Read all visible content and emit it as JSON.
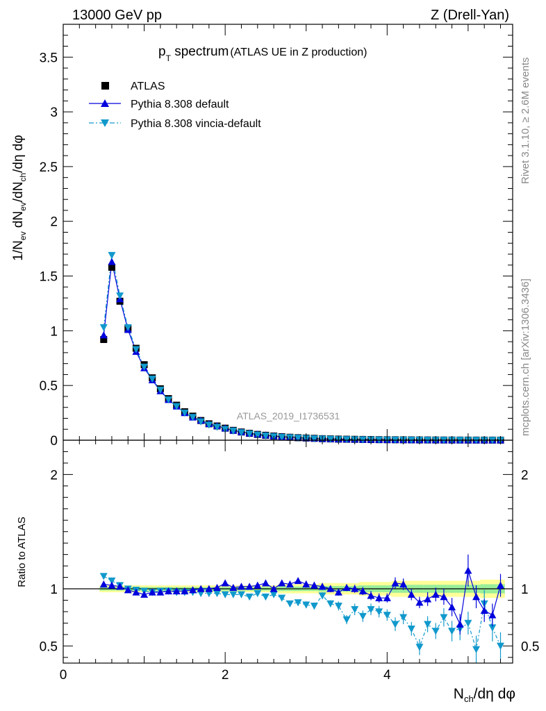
{
  "header": {
    "left": "13000 GeV pp",
    "right": "Z (Drell-Yan)"
  },
  "side_labels": {
    "rivet": "Rivet 3.1.10, ≥ 2.6M events",
    "mcplots": "mcplots.cern.ch [arXiv:1306.3436]"
  },
  "analysis_id": "ATLAS_2019_I1736531",
  "colors": {
    "data": "#000000",
    "pythia_default": "#0000dd",
    "pythia_vincia": "#1199cc",
    "band_outer": "#ffff99",
    "band_inner": "#99ee99"
  },
  "chart_data": [
    {
      "type": "scatter",
      "title": "p_T spectrum (ATLAS UE in Z production)",
      "xlabel": "N_ch/dη dφ",
      "ylabel": "1/N_ev dN_ev/dN_ch/dη dφ",
      "xlim": [
        0,
        5.55
      ],
      "ylim": [
        0,
        3.8
      ],
      "yticks": [
        0,
        0.5,
        1,
        1.5,
        2,
        2.5,
        3,
        3.5
      ],
      "legend": [
        "ATLAS",
        "Pythia 8.308 default",
        "Pythia 8.308 vincia-default"
      ],
      "legend_position": "top-left",
      "x": [
        0.5,
        0.6,
        0.7,
        0.8,
        0.9,
        1.0,
        1.1,
        1.2,
        1.3,
        1.4,
        1.5,
        1.6,
        1.7,
        1.8,
        1.9,
        2.0,
        2.1,
        2.2,
        2.3,
        2.4,
        2.5,
        2.6,
        2.7,
        2.8,
        2.9,
        3.0,
        3.1,
        3.2,
        3.3,
        3.4,
        3.5,
        3.6,
        3.7,
        3.8,
        3.9,
        4.0,
        4.1,
        4.2,
        4.3,
        4.4,
        4.5,
        4.6,
        4.7,
        4.8,
        4.9,
        5.0,
        5.1,
        5.2,
        5.3,
        5.4
      ],
      "series": [
        {
          "name": "ATLAS",
          "values": [
            0.92,
            1.58,
            1.27,
            1.02,
            0.84,
            0.69,
            0.57,
            0.47,
            0.38,
            0.32,
            0.26,
            0.22,
            0.18,
            0.15,
            0.13,
            0.11,
            0.09,
            0.075,
            0.063,
            0.053,
            0.045,
            0.038,
            0.032,
            0.027,
            0.023,
            0.02,
            0.017,
            0.014,
            0.012,
            0.01,
            0.009,
            0.008,
            0.007,
            0.006,
            0.005,
            0.0045,
            0.004,
            0.0035,
            0.003,
            0.0026,
            0.0023,
            0.002,
            0.0018,
            0.0016,
            0.0014,
            0.0012,
            0.0011,
            0.001,
            0.0009,
            0.0008
          ]
        },
        {
          "name": "Pythia 8.308 default",
          "values": [
            0.96,
            1.63,
            1.29,
            1.01,
            0.81,
            0.66,
            0.55,
            0.45,
            0.37,
            0.31,
            0.25,
            0.21,
            0.18,
            0.15,
            0.13,
            0.11,
            0.09,
            0.076,
            0.064,
            0.054,
            0.046,
            0.038,
            0.033,
            0.028,
            0.024,
            0.02,
            0.017,
            0.014,
            0.012,
            0.01,
            0.009,
            0.008,
            0.007,
            0.006,
            0.005,
            0.0045,
            0.004,
            0.0035,
            0.003,
            0.0026,
            0.0023,
            0.002,
            0.0018,
            0.0016,
            0.0014,
            0.0012,
            0.0011,
            0.001,
            0.0009,
            0.0008
          ]
        },
        {
          "name": "Pythia 8.308 vincia-default",
          "values": [
            1.03,
            1.69,
            1.32,
            1.03,
            0.83,
            0.67,
            0.56,
            0.46,
            0.37,
            0.31,
            0.25,
            0.21,
            0.17,
            0.14,
            0.12,
            0.1,
            0.085,
            0.07,
            0.058,
            0.048,
            0.04,
            0.034,
            0.028,
            0.024,
            0.02,
            0.017,
            0.014,
            0.012,
            0.01,
            0.008,
            0.007,
            0.006,
            0.005,
            0.0045,
            0.004,
            0.0035,
            0.003,
            0.0025,
            0.0022,
            0.0018,
            0.0016,
            0.0014,
            0.0012,
            0.001,
            0.0009,
            0.0008,
            0.0007,
            0.0006,
            0.0005,
            0.0004
          ]
        }
      ]
    },
    {
      "type": "scatter",
      "xlabel": "N_ch/dη dφ",
      "ylabel": "Ratio to ATLAS",
      "xlim": [
        0,
        5.55
      ],
      "ylim": [
        0.35,
        2.3
      ],
      "yticks": [
        0.5,
        1,
        2
      ],
      "xticks": [
        0,
        2,
        4
      ],
      "x": [
        0.5,
        0.6,
        0.7,
        0.8,
        0.9,
        1.0,
        1.1,
        1.2,
        1.3,
        1.4,
        1.5,
        1.6,
        1.7,
        1.8,
        1.9,
        2.0,
        2.1,
        2.2,
        2.3,
        2.4,
        2.5,
        2.6,
        2.7,
        2.8,
        2.9,
        3.0,
        3.1,
        3.2,
        3.3,
        3.4,
        3.5,
        3.6,
        3.7,
        3.8,
        3.9,
        4.0,
        4.1,
        4.2,
        4.3,
        4.4,
        4.5,
        4.6,
        4.7,
        4.8,
        4.9,
        5.0,
        5.1,
        5.2,
        5.3,
        5.4
      ],
      "band_outer": [
        0.03,
        0.03,
        0.03,
        0.03,
        0.03,
        0.03,
        0.03,
        0.03,
        0.03,
        0.03,
        0.03,
        0.03,
        0.03,
        0.03,
        0.03,
        0.03,
        0.03,
        0.03,
        0.03,
        0.03,
        0.03,
        0.03,
        0.04,
        0.04,
        0.04,
        0.04,
        0.04,
        0.05,
        0.05,
        0.05,
        0.05,
        0.05,
        0.06,
        0.06,
        0.06,
        0.06,
        0.07,
        0.07,
        0.07,
        0.07,
        0.07,
        0.07,
        0.07,
        0.07,
        0.07,
        0.07,
        0.07,
        0.08,
        0.08,
        0.08
      ],
      "band_inner": [
        0.015,
        0.015,
        0.015,
        0.015,
        0.015,
        0.015,
        0.015,
        0.015,
        0.015,
        0.015,
        0.015,
        0.015,
        0.015,
        0.015,
        0.015,
        0.015,
        0.015,
        0.015,
        0.015,
        0.015,
        0.015,
        0.015,
        0.02,
        0.02,
        0.02,
        0.02,
        0.02,
        0.025,
        0.025,
        0.025,
        0.025,
        0.025,
        0.03,
        0.03,
        0.03,
        0.03,
        0.035,
        0.035,
        0.035,
        0.035,
        0.035,
        0.035,
        0.035,
        0.035,
        0.035,
        0.035,
        0.035,
        0.04,
        0.04,
        0.04
      ],
      "series": [
        {
          "name": "Pythia 8.308 default",
          "values": [
            1.04,
            1.03,
            1.02,
            0.99,
            0.97,
            0.95,
            0.97,
            0.97,
            0.98,
            0.98,
            0.98,
            0.99,
            1.0,
            1.0,
            1.01,
            1.05,
            1.01,
            1.02,
            1.02,
            1.03,
            1.05,
            1.0,
            1.05,
            1.04,
            1.07,
            1.04,
            1.03,
            1.02,
            1.0,
            0.97,
            1.01,
            1.0,
            0.98,
            0.94,
            0.92,
            0.92,
            1.05,
            1.04,
            0.95,
            0.88,
            0.91,
            0.95,
            0.93,
            0.84,
            0.69,
            1.16,
            0.93,
            0.81,
            0.77,
            1.03
          ],
          "errors": [
            0.02,
            0.02,
            0.02,
            0.02,
            0.02,
            0.02,
            0.02,
            0.02,
            0.02,
            0.02,
            0.02,
            0.02,
            0.02,
            0.02,
            0.02,
            0.02,
            0.02,
            0.02,
            0.02,
            0.02,
            0.02,
            0.02,
            0.025,
            0.025,
            0.025,
            0.03,
            0.03,
            0.03,
            0.03,
            0.03,
            0.03,
            0.035,
            0.035,
            0.04,
            0.04,
            0.04,
            0.05,
            0.05,
            0.05,
            0.05,
            0.06,
            0.06,
            0.07,
            0.08,
            0.09,
            0.14,
            0.1,
            0.1,
            0.1,
            0.1
          ]
        },
        {
          "name": "Pythia 8.308 vincia-default",
          "values": [
            1.11,
            1.07,
            1.03,
            1.0,
            0.99,
            0.98,
            0.97,
            0.98,
            0.98,
            0.97,
            0.97,
            0.97,
            0.96,
            0.96,
            0.96,
            0.95,
            0.95,
            0.95,
            0.93,
            0.96,
            0.93,
            0.95,
            0.92,
            0.87,
            0.88,
            0.86,
            0.85,
            0.94,
            0.87,
            0.85,
            0.73,
            0.82,
            0.76,
            0.82,
            0.8,
            0.77,
            0.69,
            0.75,
            0.65,
            0.49,
            0.69,
            0.63,
            0.75,
            0.63,
            0.65,
            0.7,
            0.47,
            0.87,
            0.66,
            0.5
          ],
          "errors": [
            0.02,
            0.02,
            0.02,
            0.02,
            0.02,
            0.02,
            0.02,
            0.02,
            0.02,
            0.02,
            0.02,
            0.02,
            0.02,
            0.02,
            0.02,
            0.02,
            0.02,
            0.02,
            0.02,
            0.02,
            0.02,
            0.02,
            0.025,
            0.025,
            0.025,
            0.03,
            0.03,
            0.03,
            0.03,
            0.04,
            0.04,
            0.05,
            0.05,
            0.05,
            0.05,
            0.05,
            0.06,
            0.06,
            0.06,
            0.07,
            0.07,
            0.07,
            0.08,
            0.09,
            0.1,
            0.1,
            0.12,
            0.12,
            0.12,
            0.12
          ]
        }
      ]
    }
  ]
}
